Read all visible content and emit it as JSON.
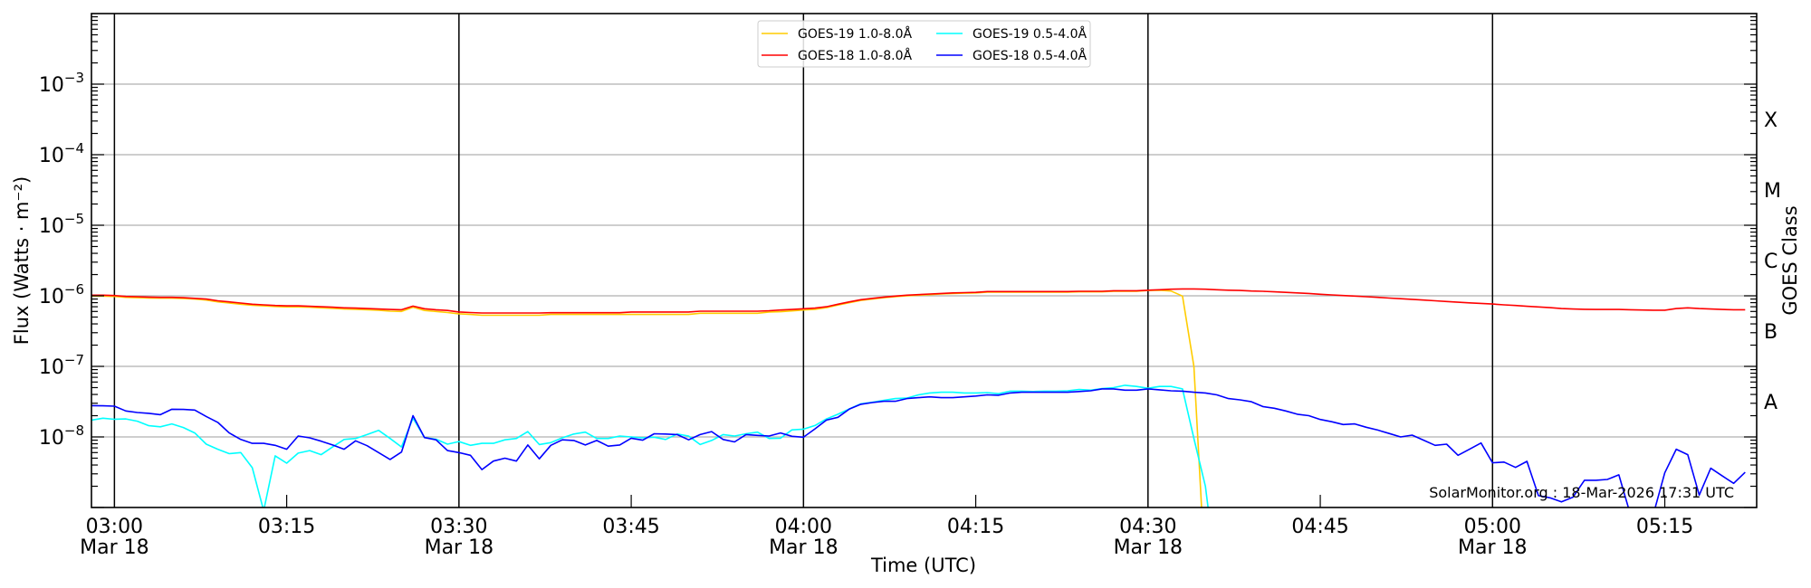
{
  "chart_data": {
    "type": "line",
    "title": "",
    "xlabel": "Time (UTC)",
    "ylabel": "Flux (Watts · m⁻²)",
    "ylabel_right": "GOES Class",
    "y_scale": "log",
    "ylim": [
      1e-09,
      0.01
    ],
    "xlim": [
      "02:58",
      "05:23"
    ],
    "grid": "horizontal at decades",
    "legend_placement": "top-center",
    "watermark": "SolarMonitor.org : 18-Mar-2026 17:31 UTC",
    "y_ticks": [
      {
        "value": 0.001,
        "base": "10",
        "exp": "−3"
      },
      {
        "value": 0.0001,
        "base": "10",
        "exp": "−4"
      },
      {
        "value": 1e-05,
        "base": "10",
        "exp": "−5"
      },
      {
        "value": 1e-06,
        "base": "10",
        "exp": "−6"
      },
      {
        "value": 1e-07,
        "base": "10",
        "exp": "−7"
      },
      {
        "value": 1e-08,
        "base": "10",
        "exp": "−8"
      }
    ],
    "class_ticks": [
      {
        "label": "X",
        "value": 0.000316
      },
      {
        "label": "M",
        "value": 3.16e-05
      },
      {
        "label": "C",
        "value": 3.16e-06
      },
      {
        "label": "B",
        "value": 3.16e-07
      },
      {
        "label": "A",
        "value": 3.16e-08
      }
    ],
    "x_ticks": [
      {
        "time": "03:00",
        "label": "03:00",
        "date": "Mar 18",
        "major": true
      },
      {
        "time": "03:15",
        "label": "03:15",
        "date": "",
        "major": false
      },
      {
        "time": "03:30",
        "label": "03:30",
        "date": "Mar 18",
        "major": true
      },
      {
        "time": "03:45",
        "label": "03:45",
        "date": "",
        "major": false
      },
      {
        "time": "04:00",
        "label": "04:00",
        "date": "Mar 18",
        "major": true
      },
      {
        "time": "04:15",
        "label": "04:15",
        "date": "",
        "major": false
      },
      {
        "time": "04:30",
        "label": "04:30",
        "date": "Mar 18",
        "major": true
      },
      {
        "time": "04:45",
        "label": "04:45",
        "date": "",
        "major": false
      },
      {
        "time": "05:00",
        "label": "05:00",
        "date": "Mar 18",
        "major": true
      },
      {
        "time": "05:15",
        "label": "05:15",
        "date": "",
        "major": false
      }
    ],
    "times": [
      "02:58",
      "02:59",
      "03:00",
      "03:01",
      "03:02",
      "03:03",
      "03:04",
      "03:05",
      "03:06",
      "03:07",
      "03:08",
      "03:09",
      "03:10",
      "03:11",
      "03:12",
      "03:13",
      "03:14",
      "03:15",
      "03:16",
      "03:17",
      "03:18",
      "03:19",
      "03:20",
      "03:21",
      "03:22",
      "03:23",
      "03:24",
      "03:25",
      "03:26",
      "03:27",
      "03:28",
      "03:29",
      "03:30",
      "03:31",
      "03:32",
      "03:33",
      "03:34",
      "03:35",
      "03:36",
      "03:37",
      "03:38",
      "03:39",
      "03:40",
      "03:41",
      "03:42",
      "03:43",
      "03:44",
      "03:45",
      "03:46",
      "03:47",
      "03:48",
      "03:49",
      "03:50",
      "03:51",
      "03:52",
      "03:53",
      "03:54",
      "03:55",
      "03:56",
      "03:57",
      "03:58",
      "03:59",
      "04:00",
      "04:01",
      "04:02",
      "04:03",
      "04:04",
      "04:05",
      "04:06",
      "04:07",
      "04:08",
      "04:09",
      "04:10",
      "04:11",
      "04:12",
      "04:13",
      "04:14",
      "04:15",
      "04:16",
      "04:17",
      "04:18",
      "04:19",
      "04:20",
      "04:21",
      "04:22",
      "04:23",
      "04:24",
      "04:25",
      "04:26",
      "04:27",
      "04:28",
      "04:29",
      "04:30",
      "04:31",
      "04:32",
      "04:33",
      "04:34",
      "04:35",
      "04:36",
      "04:37",
      "04:38",
      "04:39",
      "04:40",
      "04:41",
      "04:42",
      "04:43",
      "04:44",
      "04:45",
      "04:46",
      "04:47",
      "04:48",
      "04:49",
      "04:50",
      "04:51",
      "04:52",
      "04:53",
      "04:54",
      "04:55",
      "04:56",
      "04:57",
      "04:58",
      "04:59",
      "05:00",
      "05:01",
      "05:02",
      "05:03",
      "05:04",
      "05:05",
      "05:06",
      "05:07",
      "05:08",
      "05:09",
      "05:10",
      "05:11",
      "05:12",
      "05:13",
      "05:14",
      "05:15",
      "05:16",
      "05:17",
      "05:18",
      "05:19",
      "05:20",
      "05:21",
      "05:22"
    ],
    "series": [
      {
        "name": "GOES-19 1.0-8.0Å",
        "color": "#ffcc00",
        "values": [
          9.9e-07,
          9.9e-07,
          9.8e-07,
          9.5e-07,
          9.4e-07,
          9.3e-07,
          9.25e-07,
          9.25e-07,
          9.15e-07,
          9e-07,
          8.7e-07,
          8.2e-07,
          7.9e-07,
          7.6e-07,
          7.35e-07,
          7.2e-07,
          7.05e-07,
          6.95e-07,
          6.95e-07,
          6.9e-07,
          6.75e-07,
          6.65e-07,
          6.5e-07,
          6.45e-07,
          6.35e-07,
          6.25e-07,
          6.05e-07,
          6e-07,
          6.9e-07,
          6.2e-07,
          6e-07,
          5.8e-07,
          5.55e-07,
          5.45e-07,
          5.3e-07,
          5.3e-07,
          5.3e-07,
          5.3e-07,
          5.3e-07,
          5.3e-07,
          5.45e-07,
          5.45e-07,
          5.45e-07,
          5.45e-07,
          5.45e-07,
          5.45e-07,
          5.45e-07,
          5.45e-07,
          5.45e-07,
          5.45e-07,
          5.45e-07,
          5.45e-07,
          5.45e-07,
          5.65e-07,
          5.65e-07,
          5.65e-07,
          5.65e-07,
          5.65e-07,
          5.65e-07,
          5.9e-07,
          5.95e-07,
          6.1e-07,
          6.3e-07,
          6.45e-07,
          6.8e-07,
          7.4e-07,
          8e-07,
          8.6e-07,
          9e-07,
          9.4e-07,
          9.7e-07,
          1e-06,
          1.02e-06,
          1.04e-06,
          1.06e-06,
          1.08e-06,
          1.09e-06,
          1.1e-06,
          1.13e-06,
          1.13e-06,
          1.13e-06,
          1.13e-06,
          1.13e-06,
          1.13e-06,
          1.13e-06,
          1.13e-06,
          1.14e-06,
          1.14e-06,
          1.14e-06,
          1.16e-06,
          1.16e-06,
          1.16e-06,
          1.19e-06,
          1.2e-06,
          1.17e-06,
          9.9e-07,
          1e-07,
          1e-10
        ]
      },
      {
        "name": "GOES-18 1.0-8.0Å",
        "color": "#ff0000",
        "values": [
          1.02e-06,
          1.02e-06,
          1.01e-06,
          9.8e-07,
          9.7e-07,
          9.6e-07,
          9.5e-07,
          9.5e-07,
          9.4e-07,
          9.2e-07,
          9e-07,
          8.5e-07,
          8.2e-07,
          7.9e-07,
          7.6e-07,
          7.45e-07,
          7.3e-07,
          7.2e-07,
          7.2e-07,
          7.1e-07,
          7e-07,
          6.9e-07,
          6.75e-07,
          6.7e-07,
          6.6e-07,
          6.5e-07,
          6.4e-07,
          6.35e-07,
          7.15e-07,
          6.55e-07,
          6.35e-07,
          6.2e-07,
          5.9e-07,
          5.8e-07,
          5.7e-07,
          5.7e-07,
          5.7e-07,
          5.7e-07,
          5.7e-07,
          5.7e-07,
          5.75e-07,
          5.75e-07,
          5.75e-07,
          5.75e-07,
          5.75e-07,
          5.75e-07,
          5.75e-07,
          5.9e-07,
          5.9e-07,
          5.9e-07,
          5.9e-07,
          5.9e-07,
          5.9e-07,
          6.05e-07,
          6.05e-07,
          6.05e-07,
          6.05e-07,
          6.05e-07,
          6.05e-07,
          6.15e-07,
          6.3e-07,
          6.4e-07,
          6.55e-07,
          6.7e-07,
          7e-07,
          7.6e-07,
          8.2e-07,
          8.8e-07,
          9.2e-07,
          9.6e-07,
          9.9e-07,
          1.02e-06,
          1.04e-06,
          1.06e-06,
          1.08e-06,
          1.1e-06,
          1.11e-06,
          1.12e-06,
          1.15e-06,
          1.15e-06,
          1.15e-06,
          1.15e-06,
          1.15e-06,
          1.15e-06,
          1.15e-06,
          1.15e-06,
          1.16e-06,
          1.16e-06,
          1.16e-06,
          1.18e-06,
          1.18e-06,
          1.18e-06,
          1.2e-06,
          1.22e-06,
          1.24e-06,
          1.25e-06,
          1.25e-06,
          1.24e-06,
          1.22e-06,
          1.2e-06,
          1.19e-06,
          1.17e-06,
          1.16e-06,
          1.14e-06,
          1.12e-06,
          1.1e-06,
          1.08e-06,
          1.05e-06,
          1.03e-06,
          1.01e-06,
          9.9e-07,
          9.7e-07,
          9.5e-07,
          9.3e-07,
          9.1e-07,
          8.9e-07,
          8.7e-07,
          8.5e-07,
          8.3e-07,
          8.1e-07,
          7.95e-07,
          7.8e-07,
          7.65e-07,
          7.45e-07,
          7.3e-07,
          7.1e-07,
          6.95e-07,
          6.8e-07,
          6.6e-07,
          6.5e-07,
          6.45e-07,
          6.4e-07,
          6.4e-07,
          6.4e-07,
          6.35e-07,
          6.3e-07,
          6.25e-07,
          6.25e-07,
          6.6e-07,
          6.75e-07,
          6.6e-07,
          6.5e-07,
          6.4e-07,
          6.35e-07,
          6.35e-07
        ]
      },
      {
        "name": "GOES-19 0.5-4.0Å",
        "color": "#00ffff",
        "values": [
          1.73e-08,
          1.84e-08,
          1.78e-08,
          1.8e-08,
          1.67e-08,
          1.44e-08,
          1.39e-08,
          1.53e-08,
          1.36e-08,
          1.14e-08,
          7.9e-09,
          6.7e-09,
          5.8e-09,
          6e-09,
          3.66e-09,
          9e-10,
          5.4e-09,
          4.25e-09,
          5.9e-09,
          6.4e-09,
          5.6e-09,
          7.2e-09,
          9.2e-09,
          9.5e-09,
          1.08e-08,
          1.24e-08,
          9.5e-09,
          7.2e-09,
          1.85e-08,
          9.8e-09,
          9.3e-09,
          7.9e-09,
          8.6e-09,
          7.6e-09,
          8.1e-09,
          8.1e-09,
          9.1e-09,
          9.5e-09,
          1.19e-08,
          7.8e-09,
          8.3e-09,
          9.7e-09,
          1.1e-08,
          1.17e-08,
          9.5e-09,
          9.5e-09,
          1.03e-08,
          1e-08,
          9.7e-09,
          9.9e-09,
          9.2e-09,
          1.1e-08,
          1.03e-08,
          7.8e-09,
          8.9e-09,
          1.08e-08,
          1.03e-08,
          1.11e-08,
          1.17e-08,
          9.5e-09,
          9.6e-09,
          1.26e-08,
          1.29e-08,
          1.45e-08,
          1.8e-08,
          2.1e-08,
          2.5e-08,
          2.95e-08,
          3.1e-08,
          3.3e-08,
          3.5e-08,
          3.55e-08,
          3.95e-08,
          4.2e-08,
          4.3e-08,
          4.3e-08,
          4.2e-08,
          4.2e-08,
          4.25e-08,
          4.1e-08,
          4.45e-08,
          4.45e-08,
          4.4e-08,
          4.45e-08,
          4.45e-08,
          4.5e-08,
          4.7e-08,
          4.6e-08,
          4.85e-08,
          5e-08,
          5.4e-08,
          5.2e-08,
          4.9e-08,
          5.2e-08,
          5.2e-08,
          4.8e-08,
          9.5e-09,
          2e-09,
          1e-10
        ]
      },
      {
        "name": "GOES-18 0.5-4.0Å",
        "color": "#0000ff",
        "values": [
          2.78e-08,
          2.76e-08,
          2.73e-08,
          2.33e-08,
          2.22e-08,
          2.16e-08,
          2.07e-08,
          2.47e-08,
          2.45e-08,
          2.4e-08,
          1.95e-08,
          1.61e-08,
          1.14e-08,
          9.2e-09,
          8.1e-09,
          8.1e-09,
          7.6e-09,
          6.7e-09,
          1.03e-08,
          9.7e-09,
          8.7e-09,
          7.7e-09,
          6.7e-09,
          8.8e-09,
          7.5e-09,
          6e-09,
          4.8e-09,
          6.1e-09,
          2e-08,
          9.8e-09,
          9.1e-09,
          6.4e-09,
          6e-09,
          5.5e-09,
          3.45e-09,
          4.55e-09,
          5e-09,
          4.55e-09,
          7.7e-09,
          4.9e-09,
          7.6e-09,
          9.1e-09,
          8.9e-09,
          7.7e-09,
          8.9e-09,
          7.4e-09,
          7.7e-09,
          9.6e-09,
          9e-09,
          1.11e-08,
          1.1e-08,
          1.08e-08,
          9.1e-09,
          1.08e-08,
          1.19e-08,
          9.2e-09,
          8.5e-09,
          1.08e-08,
          1.05e-08,
          1.03e-08,
          1.14e-08,
          1.02e-08,
          9.9e-09,
          1.3e-08,
          1.73e-08,
          1.9e-08,
          2.49e-08,
          2.9e-08,
          3.07e-08,
          3.2e-08,
          3.2e-08,
          3.5e-08,
          3.6e-08,
          3.7e-08,
          3.6e-08,
          3.6e-08,
          3.7e-08,
          3.8e-08,
          3.95e-08,
          3.9e-08,
          4.2e-08,
          4.3e-08,
          4.3e-08,
          4.3e-08,
          4.3e-08,
          4.3e-08,
          4.4e-08,
          4.5e-08,
          4.8e-08,
          4.8e-08,
          4.6e-08,
          4.6e-08,
          4.8e-08,
          4.65e-08,
          4.5e-08,
          4.45e-08,
          4.3e-08,
          4.2e-08,
          3.95e-08,
          3.5e-08,
          3.35e-08,
          3.15e-08,
          2.7e-08,
          2.55e-08,
          2.33e-08,
          2.1e-08,
          2e-08,
          1.77e-08,
          1.64e-08,
          1.5e-08,
          1.53e-08,
          1.37e-08,
          1.25e-08,
          1.12e-08,
          1e-08,
          1.06e-08,
          9e-09,
          7.6e-09,
          7.9e-09,
          5.5e-09,
          6.7e-09,
          8.2e-09,
          4.3e-09,
          4.4e-09,
          3.7e-09,
          4.5e-09,
          1.47e-09,
          1.37e-09,
          1.2e-09,
          1.4e-09,
          2.43e-09,
          2.43e-09,
          2.5e-09,
          2.9e-09,
          8e-10,
          8e-10,
          8e-10,
          3.1e-09,
          6.7e-09,
          5.6e-09,
          1.5e-09,
          3.6e-09,
          2.8e-09,
          2.2e-09,
          3.15e-09
        ]
      }
    ],
    "legend_order": [
      0,
      2,
      1,
      3
    ]
  }
}
